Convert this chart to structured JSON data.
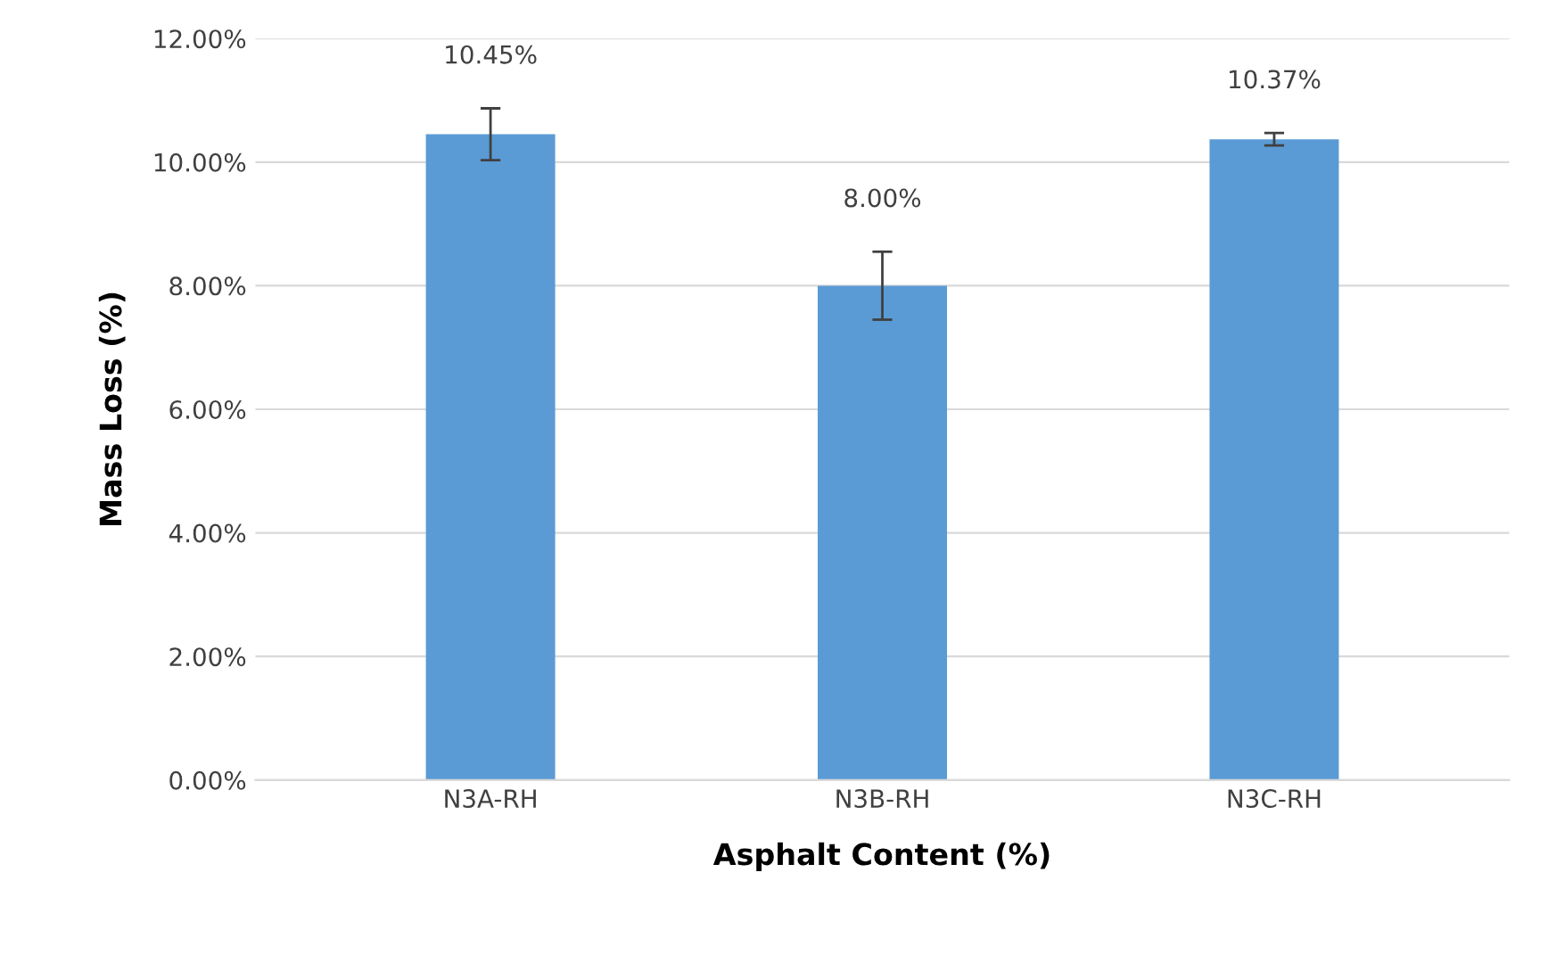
{
  "chart_data": {
    "type": "bar",
    "xlabel": "Asphalt Content (%)",
    "ylabel": "Mass Loss (%)",
    "categories": [
      "N3A-RH",
      "N3B-RH",
      "N3C-RH"
    ],
    "values": [
      10.45,
      8.0,
      10.37
    ],
    "value_labels": [
      "10.45%",
      "8.00%",
      "10.37%"
    ],
    "errors": [
      0.42,
      0.55,
      0.1
    ],
    "color": "#5b9bd5",
    "ylim": [
      0,
      12
    ],
    "yticks": [
      {
        "value": 0,
        "label": "0.00%"
      },
      {
        "value": 2,
        "label": "2.00%"
      },
      {
        "value": 4,
        "label": "4.00%"
      },
      {
        "value": 6,
        "label": "6.00%"
      },
      {
        "value": 8,
        "label": "8.00%"
      },
      {
        "value": 10,
        "label": "10.00%"
      },
      {
        "value": 12,
        "label": "12.00%"
      }
    ],
    "grid": "y"
  }
}
